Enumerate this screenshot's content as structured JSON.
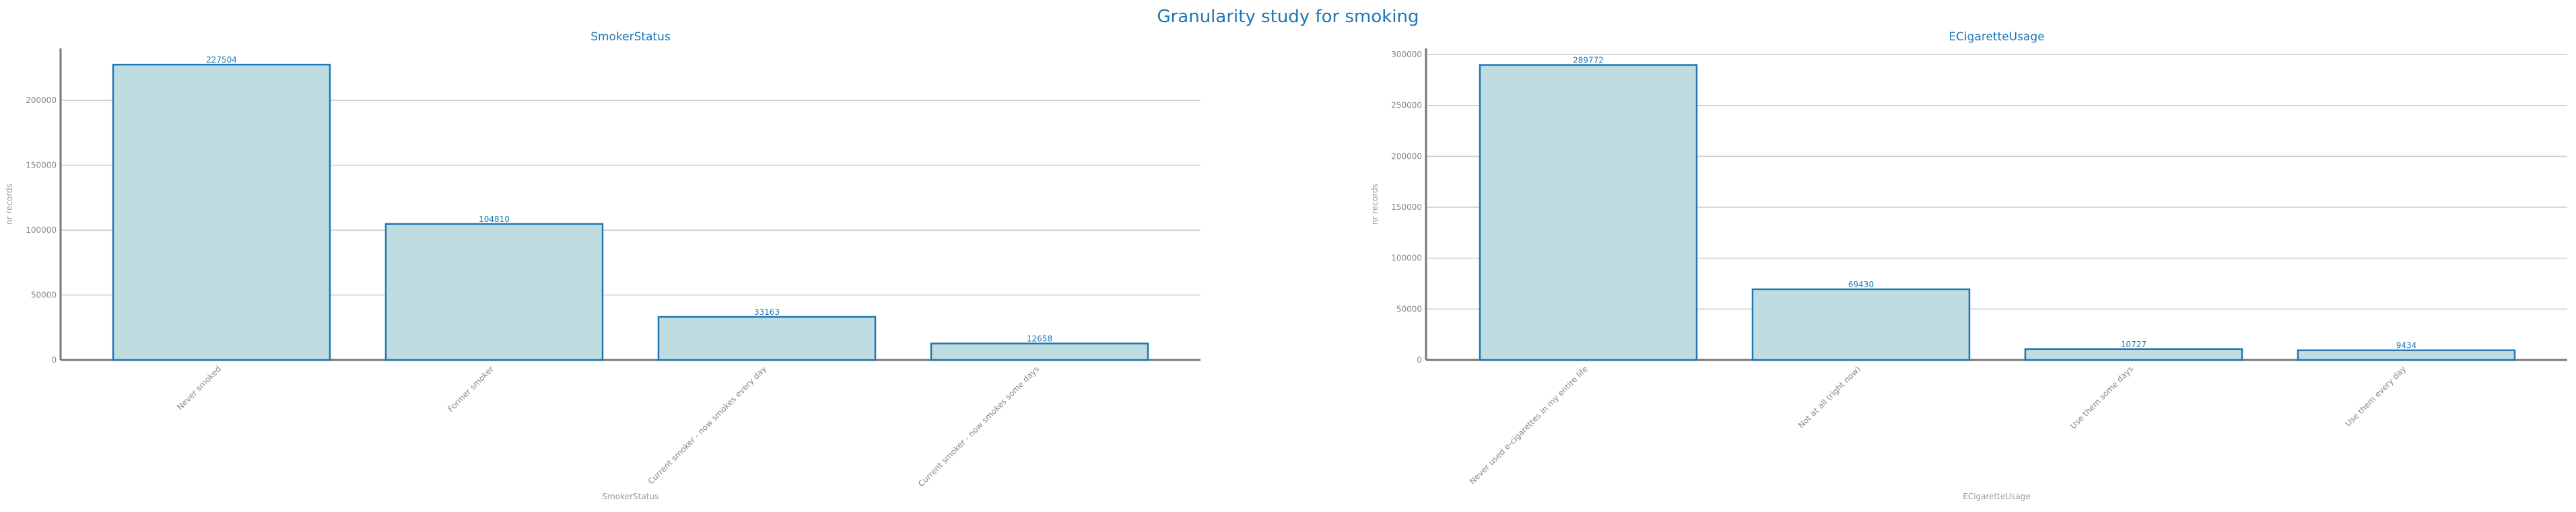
{
  "title": "Granularity study for smoking",
  "chart_data": [
    {
      "type": "bar",
      "title": "SmokerStatus",
      "xlabel": "SmokerStatus",
      "ylabel": "nr records",
      "categories": [
        "Never smoked",
        "Former smoker",
        "Current smoker - now smokes every day",
        "Current smoker - now smokes some days"
      ],
      "values": [
        227504,
        104810,
        33163,
        12658
      ],
      "ylim": [
        0,
        240000
      ],
      "yticks": [
        0,
        50000,
        100000,
        150000,
        200000
      ],
      "grid": true
    },
    {
      "type": "bar",
      "title": "ECigaretteUsage",
      "xlabel": "ECigaretteUsage",
      "ylabel": "nr records",
      "categories": [
        "Never used e-cigarettes in my entire life",
        "Not at all (right now)",
        "Use them some days",
        "Use them every day"
      ],
      "values": [
        289772,
        69430,
        10727,
        9434
      ],
      "ylim": [
        0,
        306000
      ],
      "yticks": [
        0,
        50000,
        100000,
        150000,
        200000,
        250000,
        300000
      ],
      "grid": true
    }
  ]
}
